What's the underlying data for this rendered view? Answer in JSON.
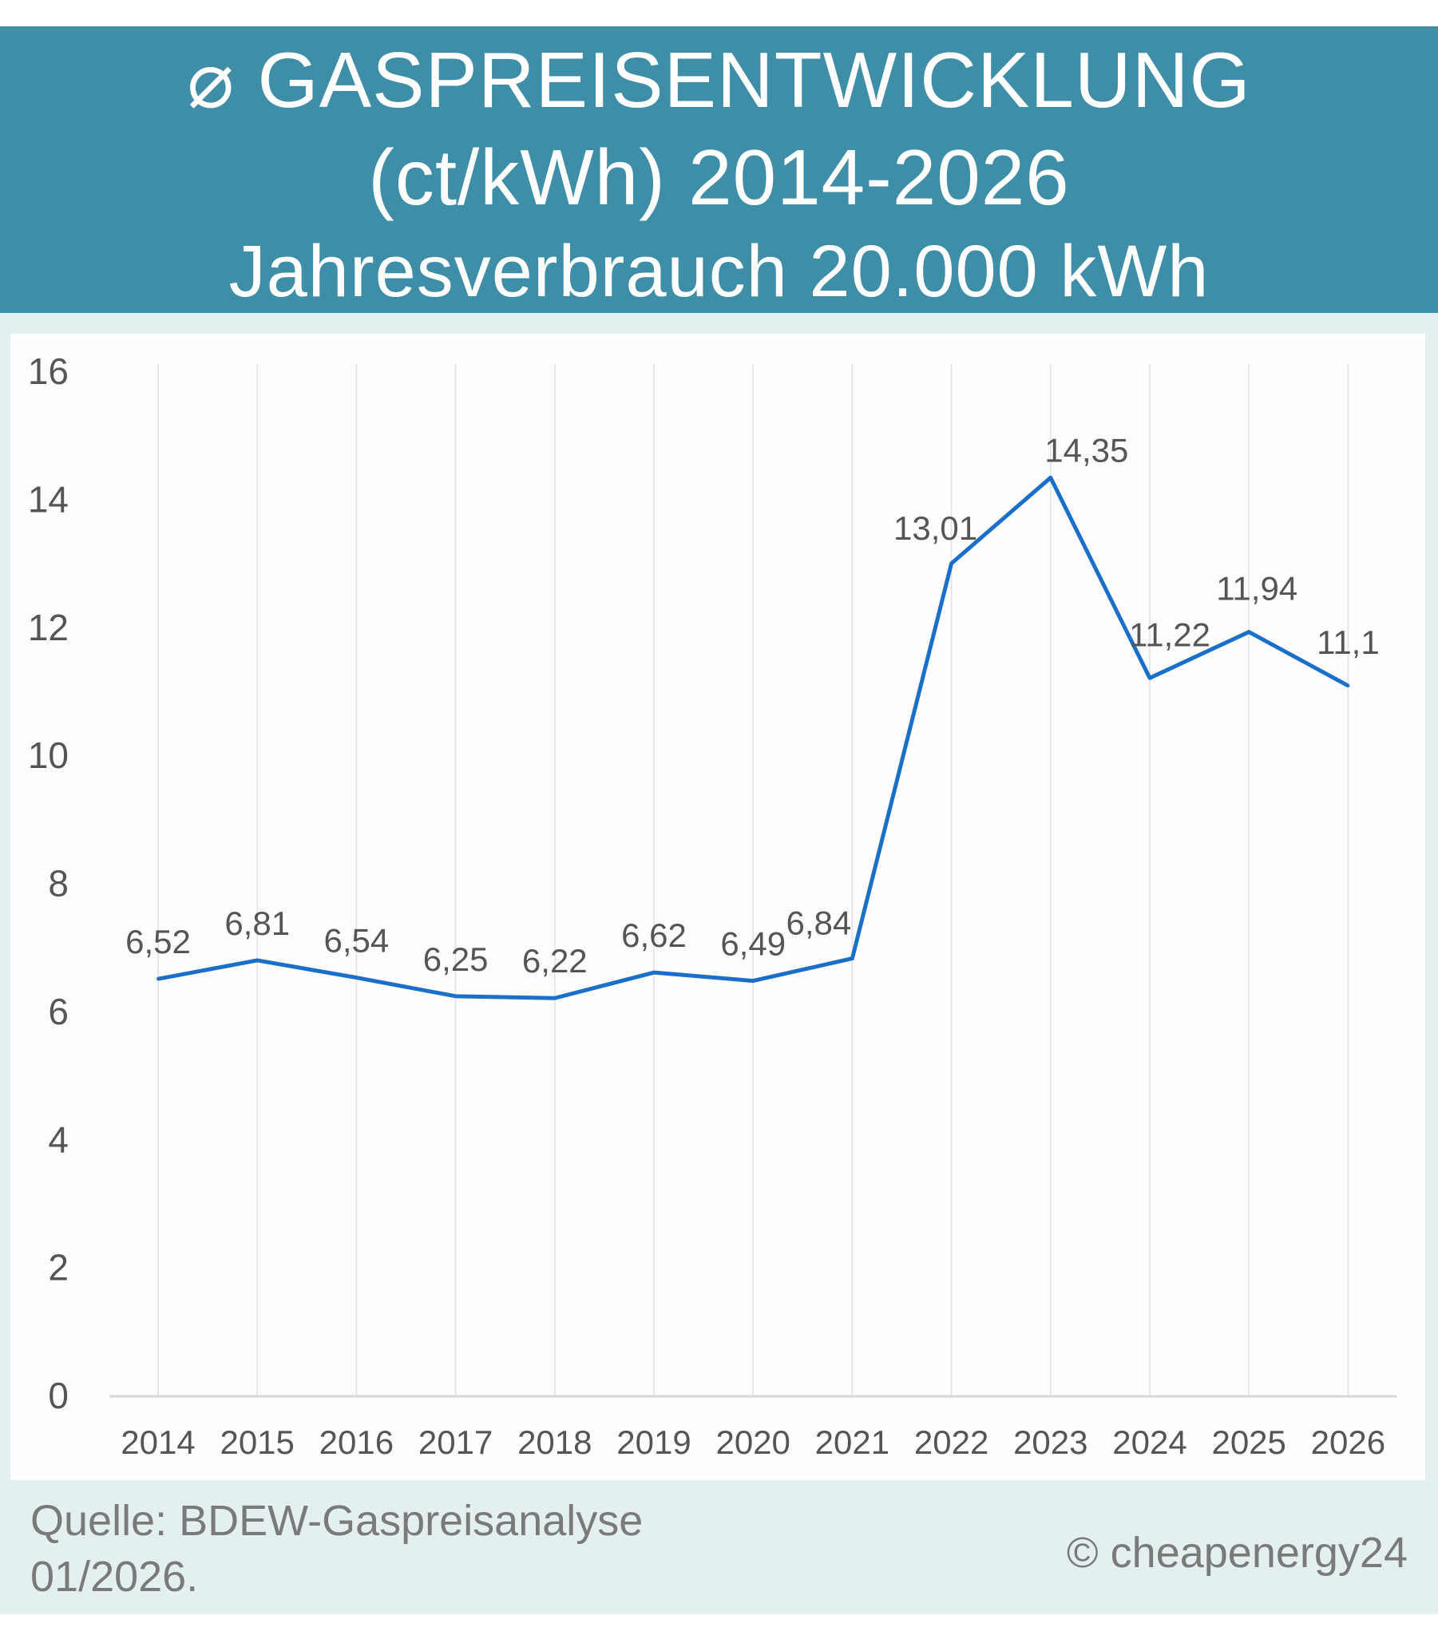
{
  "header": {
    "line1": "⌀ GASPREISENTWICKLUNG",
    "line2": "(ct/kWh) 2014-2026",
    "line3": "Jahresverbrauch 20.000 kWh"
  },
  "footer": {
    "source_line1": "Quelle: BDEW-Gaspreisanalyse",
    "source_line2": "01/2026.",
    "copyright": "© cheapenergy24"
  },
  "colors": {
    "header": "#3e8ea8",
    "background": "#e3f0ef",
    "line": "#1a6fc8",
    "text": "#555555"
  },
  "chart_data": {
    "type": "line",
    "categories": [
      "2014",
      "2015",
      "2016",
      "2017",
      "2018",
      "2019",
      "2020",
      "2021",
      "2022",
      "2023",
      "2024",
      "2025",
      "2026"
    ],
    "values": [
      6.52,
      6.81,
      6.54,
      6.25,
      6.22,
      6.62,
      6.49,
      6.84,
      13.01,
      14.35,
      11.22,
      11.94,
      11.1
    ],
    "data_labels": [
      "6,52",
      "6,81",
      "6,54",
      "6,25",
      "6,22",
      "6,62",
      "6,49",
      "6,84",
      "13,01",
      "14,35",
      "11,22",
      "11,94",
      "11,1"
    ],
    "yticks": [
      "0",
      "2",
      "4",
      "6",
      "8",
      "10",
      "12",
      "14",
      "16"
    ],
    "ylim": [
      0,
      16
    ],
    "grid": "vertical lines at categories",
    "legend": "none"
  }
}
